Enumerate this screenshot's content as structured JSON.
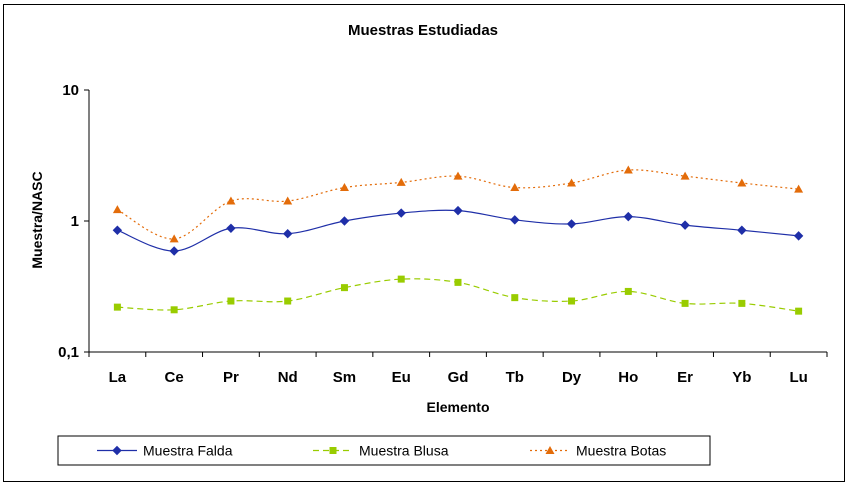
{
  "chart_data": {
    "type": "line",
    "title": "Muestras Estudiadas",
    "xlabel": "Elemento",
    "ylabel": "Muestra/NASC",
    "yscale": "log",
    "ylim": [
      0.1,
      10
    ],
    "yticks": [
      "0,1",
      "1",
      "10"
    ],
    "categories": [
      "La",
      "Ce",
      "Pr",
      "Nd",
      "Sm",
      "Eu",
      "Gd",
      "Tb",
      "Dy",
      "Ho",
      "Er",
      "Yb",
      "Lu"
    ],
    "grid": false,
    "legend_position": "bottom",
    "series": [
      {
        "name": "Muestra Falda",
        "color": "#1f2fa8",
        "marker": "diamond",
        "line_style": "solid",
        "values": [
          0.85,
          0.59,
          0.88,
          0.8,
          1.0,
          1.15,
          1.2,
          1.02,
          0.95,
          1.08,
          0.93,
          0.85,
          0.77
        ]
      },
      {
        "name": "Muestra Blusa",
        "color": "#99cc00",
        "marker": "square",
        "line_style": "dashed",
        "values": [
          0.22,
          0.21,
          0.245,
          0.245,
          0.31,
          0.36,
          0.34,
          0.26,
          0.245,
          0.29,
          0.235,
          0.235,
          0.205
        ]
      },
      {
        "name": "Muestra Botas",
        "color": "#e36c0a",
        "marker": "triangle",
        "line_style": "dotted",
        "values": [
          1.22,
          0.73,
          1.42,
          1.42,
          1.8,
          1.97,
          2.2,
          1.8,
          1.95,
          2.45,
          2.2,
          1.95,
          1.75
        ]
      }
    ]
  }
}
